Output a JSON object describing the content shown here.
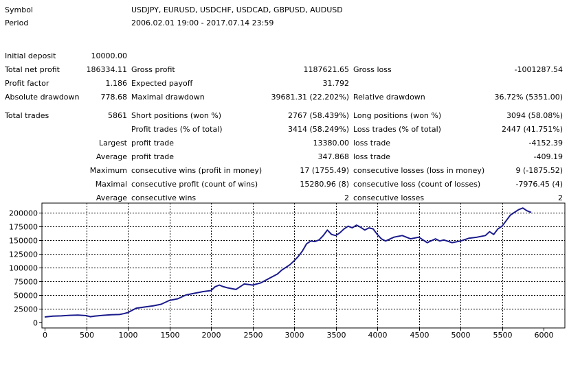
{
  "report": {
    "symbol_label": "Symbol",
    "symbol_value": "USDJPY, EURUSD, USDCHF, USDCAD, GBPUSD, AUDUSD",
    "period_label": "Period",
    "period_value": "2006.02.01 19:00 - 2017.07.14 23:59",
    "initial_deposit_label": "Initial deposit",
    "initial_deposit_value": "10000.00",
    "total_net_profit_label": "Total net profit",
    "total_net_profit_value": "186334.11",
    "gross_profit_label": "Gross profit",
    "gross_profit_value": "1187621.65",
    "gross_loss_label": "Gross loss",
    "gross_loss_value": "-1001287.54",
    "profit_factor_label": "Profit factor",
    "profit_factor_value": "1.186",
    "expected_payoff_label": "Expected payoff",
    "expected_payoff_value": "31.792",
    "absolute_drawdown_label": "Absolute drawdown",
    "absolute_drawdown_value": "778.68",
    "maximal_drawdown_label": "Maximal drawdown",
    "maximal_drawdown_value": "39681.31 (22.202%)",
    "relative_drawdown_label": "Relative drawdown",
    "relative_drawdown_value": "36.72% (5351.00)",
    "total_trades_label": "Total trades",
    "total_trades_value": "5861",
    "short_positions_label": "Short positions (won %)",
    "short_positions_value": "2767 (58.439%)",
    "long_positions_label": "Long positions (won %)",
    "long_positions_value": "3094 (58.08%)",
    "profit_trades_label": "Profit trades (% of total)",
    "profit_trades_value": "3414 (58.249%)",
    "loss_trades_label": "Loss trades (% of total)",
    "loss_trades_value": "2447 (41.751%)",
    "largest_label": "Largest",
    "largest_profit_label": "profit trade",
    "largest_profit_value": "13380.00",
    "largest_loss_label": "loss trade",
    "largest_loss_value": "-4152.39",
    "average_label": "Average",
    "average_profit_label": "profit trade",
    "average_profit_value": "347.868",
    "average_loss_label": "loss trade",
    "average_loss_value": "-409.19",
    "maximum_label": "Maximum",
    "max_cons_wins_label": "consecutive wins (profit in money)",
    "max_cons_wins_value": "17 (1755.49)",
    "max_cons_losses_label": "consecutive losses (loss in money)",
    "max_cons_losses_value": "9 (-1875.52)",
    "maximal_label": "Maximal",
    "maximal_cons_profit_label": "consecutive profit (count of wins)",
    "maximal_cons_profit_value": "15280.96 (8)",
    "maximal_cons_loss_label": "consecutive loss (count of losses)",
    "maximal_cons_loss_value": "-7976.45 (4)",
    "average2_label": "Average",
    "avg_cons_wins_label": "consecutive wins",
    "avg_cons_wins_value": "2",
    "avg_cons_losses_label": "consecutive losses",
    "avg_cons_losses_value": "2"
  },
  "chart_data": {
    "type": "line",
    "title": "",
    "xlabel": "",
    "ylabel": "",
    "xlim": [
      0,
      6000
    ],
    "ylim": [
      0,
      212000
    ],
    "grid": true,
    "line_color": "#1a1a8c",
    "x_ticks": [
      0,
      500,
      1000,
      1500,
      2000,
      2500,
      3000,
      3500,
      4000,
      4500,
      5000,
      5500,
      6000
    ],
    "y_ticks": [
      0,
      25000,
      50000,
      75000,
      100000,
      125000,
      150000,
      175000,
      200000
    ],
    "series": [
      {
        "name": "",
        "x": [
          0,
          100,
          200,
          300,
          400,
          500,
          550,
          600,
          700,
          800,
          900,
          950,
          1000,
          1050,
          1100,
          1200,
          1300,
          1400,
          1500,
          1600,
          1700,
          1800,
          1900,
          2000,
          2050,
          2100,
          2150,
          2200,
          2300,
          2350,
          2400,
          2500,
          2600,
          2700,
          2800,
          2850,
          2900,
          2950,
          3000,
          3050,
          3100,
          3150,
          3200,
          3250,
          3300,
          3350,
          3400,
          3450,
          3500,
          3550,
          3600,
          3650,
          3700,
          3750,
          3800,
          3850,
          3900,
          3950,
          4000,
          4050,
          4100,
          4200,
          4300,
          4400,
          4500,
          4600,
          4700,
          4750,
          4800,
          4900,
          5000,
          5100,
          5200,
          5300,
          5350,
          5400,
          5450,
          5500,
          5550,
          5600,
          5650,
          5700,
          5750,
          5800,
          5850
        ],
        "values": [
          10000,
          11500,
          12000,
          13000,
          13500,
          12500,
          10500,
          11500,
          13000,
          14000,
          14500,
          16000,
          18000,
          22000,
          26000,
          28000,
          30000,
          33000,
          40000,
          43000,
          50000,
          53000,
          56000,
          58000,
          65000,
          68000,
          65000,
          63000,
          60000,
          65000,
          70000,
          68000,
          72000,
          80000,
          88000,
          95000,
          100000,
          105000,
          112000,
          120000,
          130000,
          143000,
          148000,
          147000,
          150000,
          158000,
          168000,
          160000,
          158000,
          163000,
          170000,
          175000,
          172000,
          177000,
          173000,
          168000,
          172000,
          170000,
          160000,
          152000,
          148000,
          155000,
          158000,
          152000,
          155000,
          145000,
          152000,
          148000,
          150000,
          145000,
          148000,
          153000,
          155000,
          158000,
          165000,
          160000,
          170000,
          175000,
          185000,
          195000,
          200000,
          205000,
          208000,
          203000,
          200000
        ]
      }
    ]
  }
}
